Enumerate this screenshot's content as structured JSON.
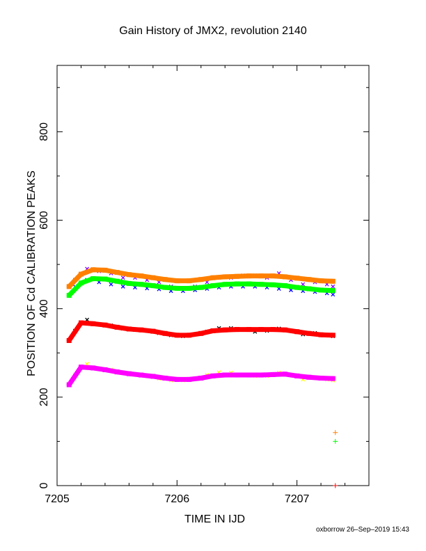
{
  "chart_data": {
    "type": "scatter",
    "title": "Gain History of JMX2, revolution 2140",
    "xlabel": "TIME IN IJD",
    "ylabel": "POSITION OF Cd CALIBRATION PEAKS",
    "xlim": [
      7205.0,
      7207.6
    ],
    "ylim": [
      0,
      950
    ],
    "xticks": [
      7205,
      7206,
      7207
    ],
    "xtick_labels": [
      "7205",
      "7206",
      "7207"
    ],
    "yticks": [
      0,
      200,
      400,
      600,
      800
    ],
    "ytick_labels": [
      "0",
      "200",
      "400",
      "600",
      "800"
    ],
    "grid": false,
    "legend": "none",
    "series": [
      {
        "marker": "x",
        "color": "#8000ff",
        "x": [
          7205.15,
          7205.25,
          7205.35,
          7205.45,
          7205.55,
          7205.65,
          7205.75,
          7205.85,
          7205.95,
          7206.05,
          7206.15,
          7206.25,
          7206.35,
          7206.45,
          7206.55,
          7206.65,
          7206.75,
          7206.85,
          7206.95,
          7207.05,
          7207.15,
          7207.25,
          7207.3
        ],
        "y": [
          465,
          490,
          485,
          480,
          470,
          470,
          465,
          460,
          450,
          445,
          450,
          460,
          470,
          470,
          475,
          475,
          470,
          480,
          465,
          455,
          460,
          455,
          450
        ]
      },
      {
        "marker": "x",
        "color": "#0000ff",
        "x": [
          7205.15,
          7205.25,
          7205.35,
          7205.45,
          7205.55,
          7205.65,
          7205.75,
          7205.85,
          7205.95,
          7206.05,
          7206.15,
          7206.25,
          7206.35,
          7206.45,
          7206.55,
          7206.65,
          7206.75,
          7206.85,
          7206.95,
          7207.05,
          7207.15,
          7207.25,
          7207.3
        ],
        "y": [
          450,
          465,
          460,
          455,
          450,
          448,
          446,
          444,
          440,
          440,
          442,
          445,
          448,
          450,
          450,
          450,
          448,
          445,
          442,
          440,
          438,
          435,
          432
        ]
      },
      {
        "marker": "x",
        "color": "#000000",
        "x": [
          7205.15,
          7205.25,
          7205.35,
          7205.45,
          7205.55,
          7205.65,
          7205.75,
          7205.85,
          7205.95,
          7206.05,
          7206.15,
          7206.25,
          7206.35,
          7206.45,
          7206.55,
          7206.65,
          7206.75,
          7206.85,
          7206.95,
          7207.05,
          7207.15,
          7207.25,
          7207.3
        ],
        "y": [
          350,
          375,
          365,
          362,
          355,
          352,
          350,
          345,
          340,
          338,
          342,
          348,
          356,
          356,
          352,
          348,
          350,
          355,
          350,
          342,
          345,
          340,
          338
        ]
      },
      {
        "marker": "x",
        "color": "#ffff00",
        "x": [
          7205.15,
          7205.25,
          7205.35,
          7205.45,
          7205.55,
          7205.65,
          7205.75,
          7205.85,
          7205.95,
          7206.05,
          7206.15,
          7206.25,
          7206.35,
          7206.45,
          7206.55,
          7206.65,
          7206.75,
          7206.85,
          7206.95,
          7207.05,
          7207.15,
          7207.25,
          7207.3
        ],
        "y": [
          250,
          275,
          265,
          262,
          255,
          252,
          248,
          242,
          238,
          238,
          242,
          250,
          256,
          255,
          250,
          248,
          248,
          255,
          250,
          240,
          245,
          240,
          238
        ]
      },
      {
        "marker": "line",
        "color": "#ff8000",
        "x": [
          7205.1,
          7205.2,
          7205.3,
          7205.4,
          7205.5,
          7205.6,
          7205.7,
          7205.8,
          7205.9,
          7206.0,
          7206.1,
          7206.2,
          7206.3,
          7206.4,
          7206.5,
          7206.6,
          7206.7,
          7206.8,
          7206.9,
          7207.0,
          7207.1,
          7207.2,
          7207.3
        ],
        "y": [
          450,
          478,
          488,
          487,
          482,
          477,
          474,
          470,
          466,
          463,
          463,
          466,
          470,
          472,
          473,
          474,
          474,
          474,
          472,
          469,
          466,
          463,
          462
        ]
      },
      {
        "marker": "line",
        "color": "#00ff00",
        "x": [
          7205.1,
          7205.2,
          7205.3,
          7205.4,
          7205.5,
          7205.6,
          7205.7,
          7205.8,
          7205.9,
          7206.0,
          7206.1,
          7206.2,
          7206.3,
          7206.4,
          7206.5,
          7206.6,
          7206.7,
          7206.8,
          7206.9,
          7207.0,
          7207.1,
          7207.2,
          7207.3
        ],
        "y": [
          430,
          458,
          468,
          467,
          462,
          457,
          455,
          452,
          448,
          446,
          446,
          448,
          452,
          455,
          456,
          456,
          455,
          454,
          452,
          448,
          445,
          442,
          441
        ]
      },
      {
        "marker": "line",
        "color": "#ff0000",
        "x": [
          7205.1,
          7205.2,
          7205.3,
          7205.4,
          7205.5,
          7205.6,
          7205.7,
          7205.8,
          7205.9,
          7206.0,
          7206.1,
          7206.2,
          7206.3,
          7206.4,
          7206.5,
          7206.6,
          7206.7,
          7206.8,
          7206.9,
          7207.0,
          7207.1,
          7207.2,
          7207.3
        ],
        "y": [
          328,
          368,
          366,
          363,
          358,
          354,
          352,
          349,
          344,
          340,
          340,
          344,
          350,
          352,
          353,
          353,
          353,
          353,
          352,
          348,
          344,
          341,
          340
        ]
      },
      {
        "marker": "line",
        "color": "#ff00ff",
        "x": [
          7205.1,
          7205.2,
          7205.3,
          7205.4,
          7205.5,
          7205.6,
          7205.7,
          7205.8,
          7205.9,
          7206.0,
          7206.1,
          7206.2,
          7206.3,
          7206.4,
          7206.5,
          7206.6,
          7206.7,
          7206.8,
          7206.9,
          7207.0,
          7207.1,
          7207.2,
          7207.3
        ],
        "y": [
          228,
          268,
          266,
          262,
          257,
          253,
          250,
          247,
          243,
          240,
          240,
          243,
          248,
          250,
          250,
          250,
          250,
          251,
          252,
          248,
          245,
          243,
          242
        ]
      },
      {
        "marker": "+",
        "color": "#ff8000",
        "x": [
          7207.32
        ],
        "y": [
          120
        ]
      },
      {
        "marker": "+",
        "color": "#00ff00",
        "x": [
          7207.32
        ],
        "y": [
          100
        ]
      },
      {
        "marker": "+",
        "color": "#ff0000",
        "x": [
          7207.32
        ],
        "y": [
          0
        ]
      }
    ]
  },
  "footer": "oxborrow 26–Sep–2019 15:43"
}
